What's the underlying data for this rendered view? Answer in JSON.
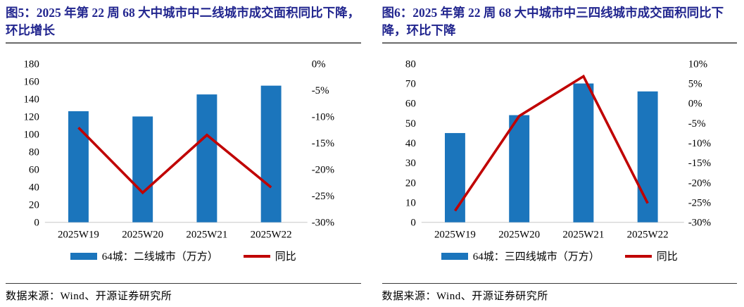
{
  "colors": {
    "bar_blue": "#1B75BC",
    "line_red": "#C00000",
    "title_navy": "#22268F",
    "axis_line": "#D6D6D6",
    "text": "#000000"
  },
  "figures": [
    {
      "title": "图5：2025 年第 22 周 68 大中城市中二线城市成交面积同比下降，环比增长",
      "source": "数据来源：Wind、开源证券研究所"
    },
    {
      "title": "图6：2025 年第 22 周 68 大中城市中三四线城市成交面积同比下降，环比下降",
      "source": "数据来源：Wind、开源证券研究所"
    }
  ],
  "chart_data": [
    {
      "type": "bar+line",
      "title": "图5：2025 年第 22 周 68 大中城市中二线城市成交面积同比下降，环比增长",
      "categories": [
        "2025W19",
        "2025W20",
        "2025W21",
        "2025W22"
      ],
      "series": [
        {
          "name": "64城：二线城市（万方）",
          "type": "bar",
          "axis": "left",
          "values": [
            126,
            120,
            145,
            155
          ]
        },
        {
          "name": "同比",
          "type": "line",
          "axis": "right",
          "unit": "%",
          "values": [
            -12.1,
            -24.4,
            -13.5,
            -23.4
          ]
        }
      ],
      "left_axis": {
        "min": 0,
        "max": 180,
        "step": 20
      },
      "right_axis": {
        "min": -30,
        "max": 0,
        "step": 5,
        "format": "percent"
      },
      "legend_position": "bottom",
      "grid": false
    },
    {
      "type": "bar+line",
      "title": "图6：2025 年第 22 周 68 大中城市中三四线城市成交面积同比下降，环比下降",
      "categories": [
        "2025W19",
        "2025W20",
        "2025W21",
        "2025W22"
      ],
      "series": [
        {
          "name": "64城：三四线城市（万方）",
          "type": "bar",
          "axis": "left",
          "values": [
            45,
            54,
            70,
            66
          ]
        },
        {
          "name": "同比",
          "type": "line",
          "axis": "right",
          "unit": "%",
          "values": [
            -27.1,
            -3.2,
            6.8,
            -25.2
          ]
        }
      ],
      "left_axis": {
        "min": 0,
        "max": 80,
        "step": 10
      },
      "right_axis": {
        "min": -30,
        "max": 10,
        "step": 5,
        "format": "percent"
      },
      "legend_position": "bottom",
      "grid": false
    }
  ]
}
